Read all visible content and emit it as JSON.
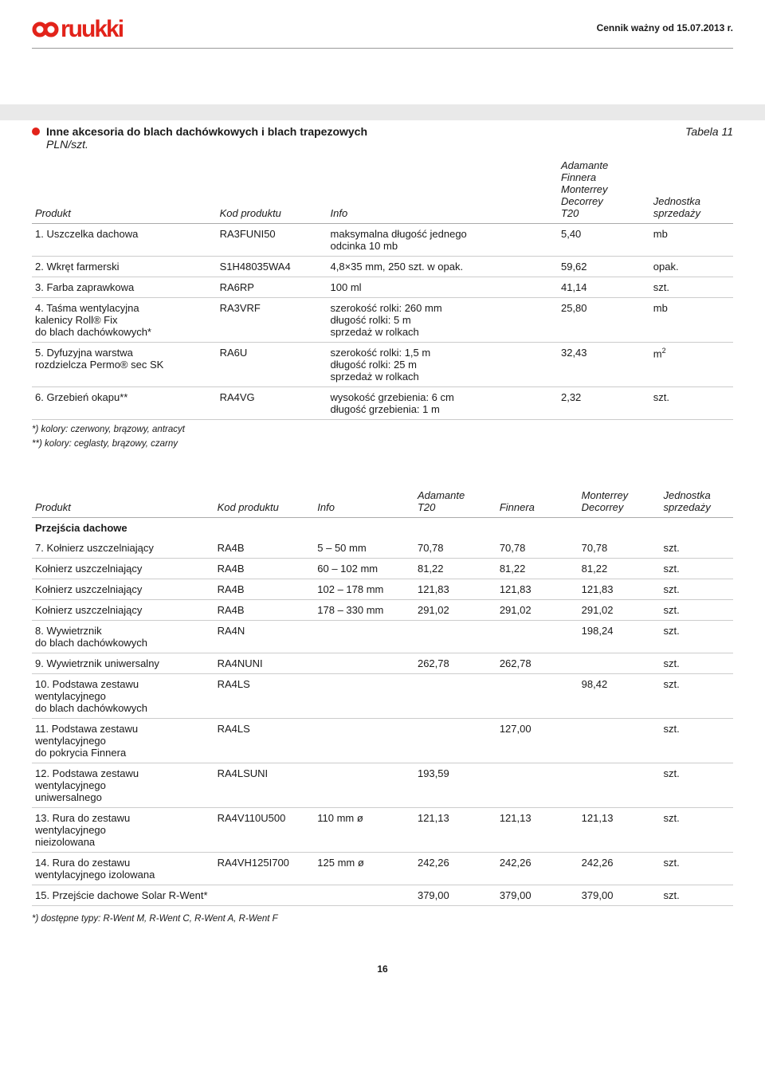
{
  "header": {
    "logo_text": "ruukki",
    "validity": "Cennik ważny od 15.07.2013 r."
  },
  "section1": {
    "title": "Inne akcesoria do blach dachówkowych i blach trapezowych",
    "tabela": "Tabela 11",
    "subtitle": "PLN/szt.",
    "headers": {
      "col1": "Produkt",
      "col2": "Kod produktu",
      "col3": "Info",
      "col4": "Adamante\nFinnera\nMonterrey\nDecorrey\nT20",
      "col5": "Jednostka\nsprzedaży"
    },
    "rows": [
      {
        "n": "1.",
        "produkt": "Uszczelka dachowa",
        "kod": "RA3FUNI50",
        "info": "maksymalna długość jednego\nodcinka 10 mb",
        "v": "5,40",
        "u": "mb"
      },
      {
        "n": "2.",
        "produkt": "Wkręt farmerski",
        "kod": "S1H48035WA4",
        "info": "4,8×35 mm, 250 szt. w opak.",
        "v": "59,62",
        "u": "opak."
      },
      {
        "n": "3.",
        "produkt": "Farba zaprawkowa",
        "kod": "RA6RP",
        "info": "100 ml",
        "v": "41,14",
        "u": "szt."
      },
      {
        "n": "4.",
        "produkt": "Taśma wentylacyjna\nkalenicy Roll® Fix\ndo blach dachówkowych*",
        "kod": "RA3VRF",
        "info": "szerokość rolki: 260 mm\ndługość rolki: 5 m\nsprzedaż w rolkach",
        "v": "25,80",
        "u": "mb"
      },
      {
        "n": "5.",
        "produkt": "Dyfuzyjna warstwa\nrozdzielcza Permo® sec SK",
        "kod": "RA6U",
        "info": "szerokość rolki: 1,5 m\ndługość rolki: 25 m\nsprzedaż w rolkach",
        "v": "32,43",
        "u": "m²"
      },
      {
        "n": "6.",
        "produkt": "Grzebień okapu**",
        "kod": "RA4VG",
        "info": "wysokość grzebienia: 6 cm\ndługość grzebienia: 1 m",
        "v": "2,32",
        "u": "szt."
      }
    ],
    "footnotes": [
      "*) kolory: czerwony, brązowy, antracyt",
      "**) kolory: ceglasty, brązowy, czarny"
    ]
  },
  "section2": {
    "headers": {
      "col1": "Produkt",
      "col2": "Kod produktu",
      "col3": "Info",
      "col4": "Adamante\nT20",
      "col5": "Finnera",
      "col6": "Monterrey\nDecorrey",
      "col7": "Jednostka\nsprzedaży"
    },
    "subhead": "Przejścia dachowe",
    "rows": [
      {
        "n": "7.",
        "produkt": "Kołnierz uszczelniający",
        "kod": "RA4B",
        "info": "5 – 50 mm",
        "v4": "70,78",
        "v5": "70,78",
        "v6": "70,78",
        "u": "szt."
      },
      {
        "n": "",
        "produkt": "Kołnierz uszczelniający",
        "kod": "RA4B",
        "info": "60 – 102 mm",
        "v4": "81,22",
        "v5": "81,22",
        "v6": "81,22",
        "u": "szt."
      },
      {
        "n": "",
        "produkt": "Kołnierz uszczelniający",
        "kod": "RA4B",
        "info": "102 – 178 mm",
        "v4": "121,83",
        "v5": "121,83",
        "v6": "121,83",
        "u": "szt."
      },
      {
        "n": "",
        "produkt": "Kołnierz uszczelniający",
        "kod": "RA4B",
        "info": "178 – 330 mm",
        "v4": "291,02",
        "v5": "291,02",
        "v6": "291,02",
        "u": "szt."
      },
      {
        "n": "8.",
        "produkt": "Wywietrznik\ndo blach dachówkowych",
        "kod": "RA4N",
        "info": "",
        "v4": "",
        "v5": "",
        "v6": "198,24",
        "u": "szt."
      },
      {
        "n": "9.",
        "produkt": "Wywietrznik uniwersalny",
        "kod": "RA4NUNI",
        "info": "",
        "v4": "262,78",
        "v5": "262,78",
        "v6": "",
        "u": "szt."
      },
      {
        "n": "10.",
        "produkt": "Podstawa zestawu\nwentylacyjnego\ndo blach dachówkowych",
        "kod": "RA4LS",
        "info": "",
        "v4": "",
        "v5": "",
        "v6": "98,42",
        "u": "szt."
      },
      {
        "n": "11.",
        "produkt": "Podstawa zestawu\nwentylacyjnego\ndo pokrycia Finnera",
        "kod": "RA4LS",
        "info": "",
        "v4": "",
        "v5": "127,00",
        "v6": "",
        "u": "szt."
      },
      {
        "n": "12.",
        "produkt": "Podstawa zestawu\nwentylacyjnego\nuniwersalnego",
        "kod": "RA4LSUNI",
        "info": "",
        "v4": "193,59",
        "v5": "",
        "v6": "",
        "u": "szt."
      },
      {
        "n": "13.",
        "produkt": "Rura do zestawu\nwentylacyjnego\nnieizolowana",
        "kod": "RA4V110U500",
        "info": "110 mm ø",
        "v4": "121,13",
        "v5": "121,13",
        "v6": "121,13",
        "u": "szt."
      },
      {
        "n": "14.",
        "produkt": "Rura do zestawu\nwentylacyjnego izolowana",
        "kod": "RA4VH125I700",
        "info": "125 mm ø",
        "v4": "242,26",
        "v5": "242,26",
        "v6": "242,26",
        "u": "szt."
      },
      {
        "n": "15.",
        "produkt": "Przejście dachowe Solar R-Went*",
        "kod": "",
        "info": "",
        "v4": "379,00",
        "v5": "379,00",
        "v6": "379,00",
        "u": "szt."
      }
    ],
    "footnote": "*) dostępne typy: R-Went M, R-Went C, R-Went A, R-Went F"
  },
  "page_number": "16"
}
